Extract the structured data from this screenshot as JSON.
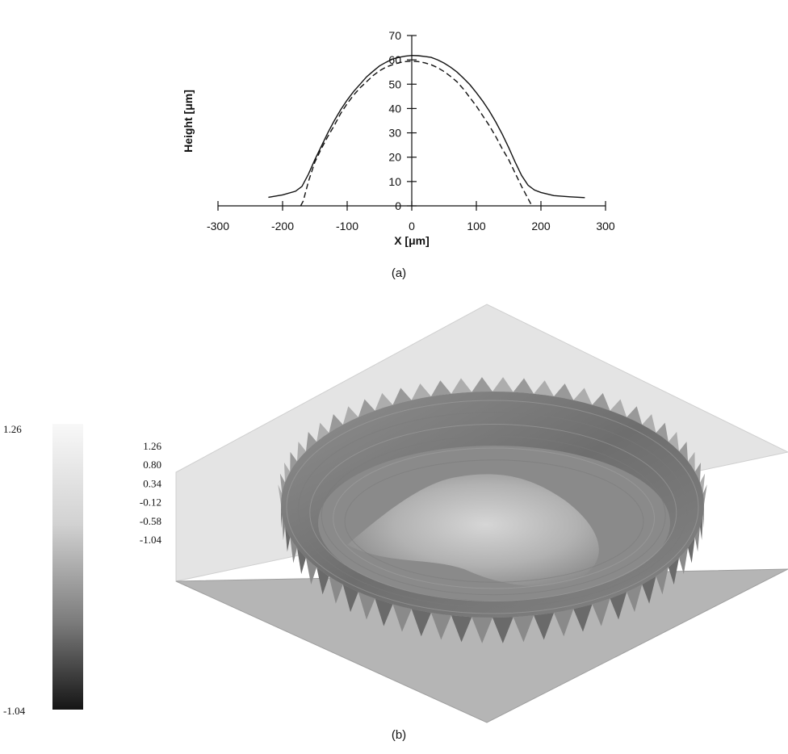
{
  "chart_data": [
    {
      "type": "line",
      "panel_label": "(a)",
      "xlabel": "X [μm]",
      "ylabel": "Height [μm]",
      "xlim": [
        -300,
        300
      ],
      "ylim": [
        0,
        70
      ],
      "x_ticks": [
        -300,
        -200,
        -100,
        0,
        100,
        200,
        300
      ],
      "y_ticks": [
        0,
        10,
        20,
        30,
        40,
        50,
        60,
        70
      ],
      "grid": false,
      "series": [
        {
          "style": "solid",
          "points": [
            [
              -222,
              3.5
            ],
            [
              -200,
              4.5
            ],
            [
              -180,
              6
            ],
            [
              -170,
              8
            ],
            [
              -160,
              13
            ],
            [
              -150,
              19
            ],
            [
              -140,
              24.5
            ],
            [
              -130,
              30
            ],
            [
              -120,
              35
            ],
            [
              -110,
              39.5
            ],
            [
              -100,
              43.5
            ],
            [
              -90,
              47
            ],
            [
              -80,
              50
            ],
            [
              -70,
              53
            ],
            [
              -60,
              55.3
            ],
            [
              -50,
              57.5
            ],
            [
              -40,
              59
            ],
            [
              -30,
              60.3
            ],
            [
              -20,
              61
            ],
            [
              -10,
              61.5
            ],
            [
              0,
              61.8
            ],
            [
              10,
              61.7
            ],
            [
              20,
              61.4
            ],
            [
              30,
              61
            ],
            [
              40,
              60
            ],
            [
              50,
              58.7
            ],
            [
              60,
              57
            ],
            [
              70,
              55
            ],
            [
              80,
              52.5
            ],
            [
              90,
              49.8
            ],
            [
              100,
              46.5
            ],
            [
              110,
              43
            ],
            [
              120,
              39
            ],
            [
              130,
              34.5
            ],
            [
              140,
              29.5
            ],
            [
              150,
              24
            ],
            [
              160,
              18
            ],
            [
              170,
              12.5
            ],
            [
              180,
              8.5
            ],
            [
              190,
              6.5
            ],
            [
              200,
              5.5
            ],
            [
              220,
              4.2
            ],
            [
              245,
              3.7
            ],
            [
              268,
              3.4
            ]
          ]
        },
        {
          "style": "dashed",
          "points": [
            [
              -172,
              0
            ],
            [
              -168,
              2
            ],
            [
              -160,
              10
            ],
            [
              -150,
              18
            ],
            [
              -140,
              23.5
            ],
            [
              -130,
              28.5
            ],
            [
              -120,
              33
            ],
            [
              -110,
              38
            ],
            [
              -100,
              42
            ],
            [
              -90,
              45.5
            ],
            [
              -80,
              48.5
            ],
            [
              -70,
              51
            ],
            [
              -60,
              53.5
            ],
            [
              -50,
              55.5
            ],
            [
              -40,
              57
            ],
            [
              -30,
              58
            ],
            [
              -20,
              58.8
            ],
            [
              -10,
              59.3
            ],
            [
              0,
              59.5
            ],
            [
              10,
              59.3
            ],
            [
              20,
              58.8
            ],
            [
              30,
              58
            ],
            [
              40,
              56.8
            ],
            [
              50,
              55.2
            ],
            [
              60,
              53.2
            ],
            [
              70,
              51
            ],
            [
              80,
              48
            ],
            [
              90,
              44.5
            ],
            [
              100,
              41
            ],
            [
              110,
              37
            ],
            [
              120,
              33
            ],
            [
              130,
              28.5
            ],
            [
              140,
              23.5
            ],
            [
              150,
              19
            ],
            [
              160,
              13.5
            ],
            [
              170,
              8
            ],
            [
              180,
              3
            ],
            [
              186,
              0
            ]
          ]
        }
      ]
    },
    {
      "type": "heatmap",
      "panel_label": "(b)",
      "colorbar": {
        "max_label": "1.26",
        "min_label": "-1.04",
        "min": -1.04,
        "max": 1.26
      },
      "z_ticks": [
        "1.26",
        "0.80",
        "0.34",
        "-0.12",
        "-0.58",
        "-1.04"
      ],
      "colors": {
        "top_plane": "#e6e6e6",
        "bottom_plane": "#b4b4b4",
        "rim": "#7d7d7d",
        "inner": "#959595",
        "dome": "#c6c6c6"
      }
    }
  ]
}
